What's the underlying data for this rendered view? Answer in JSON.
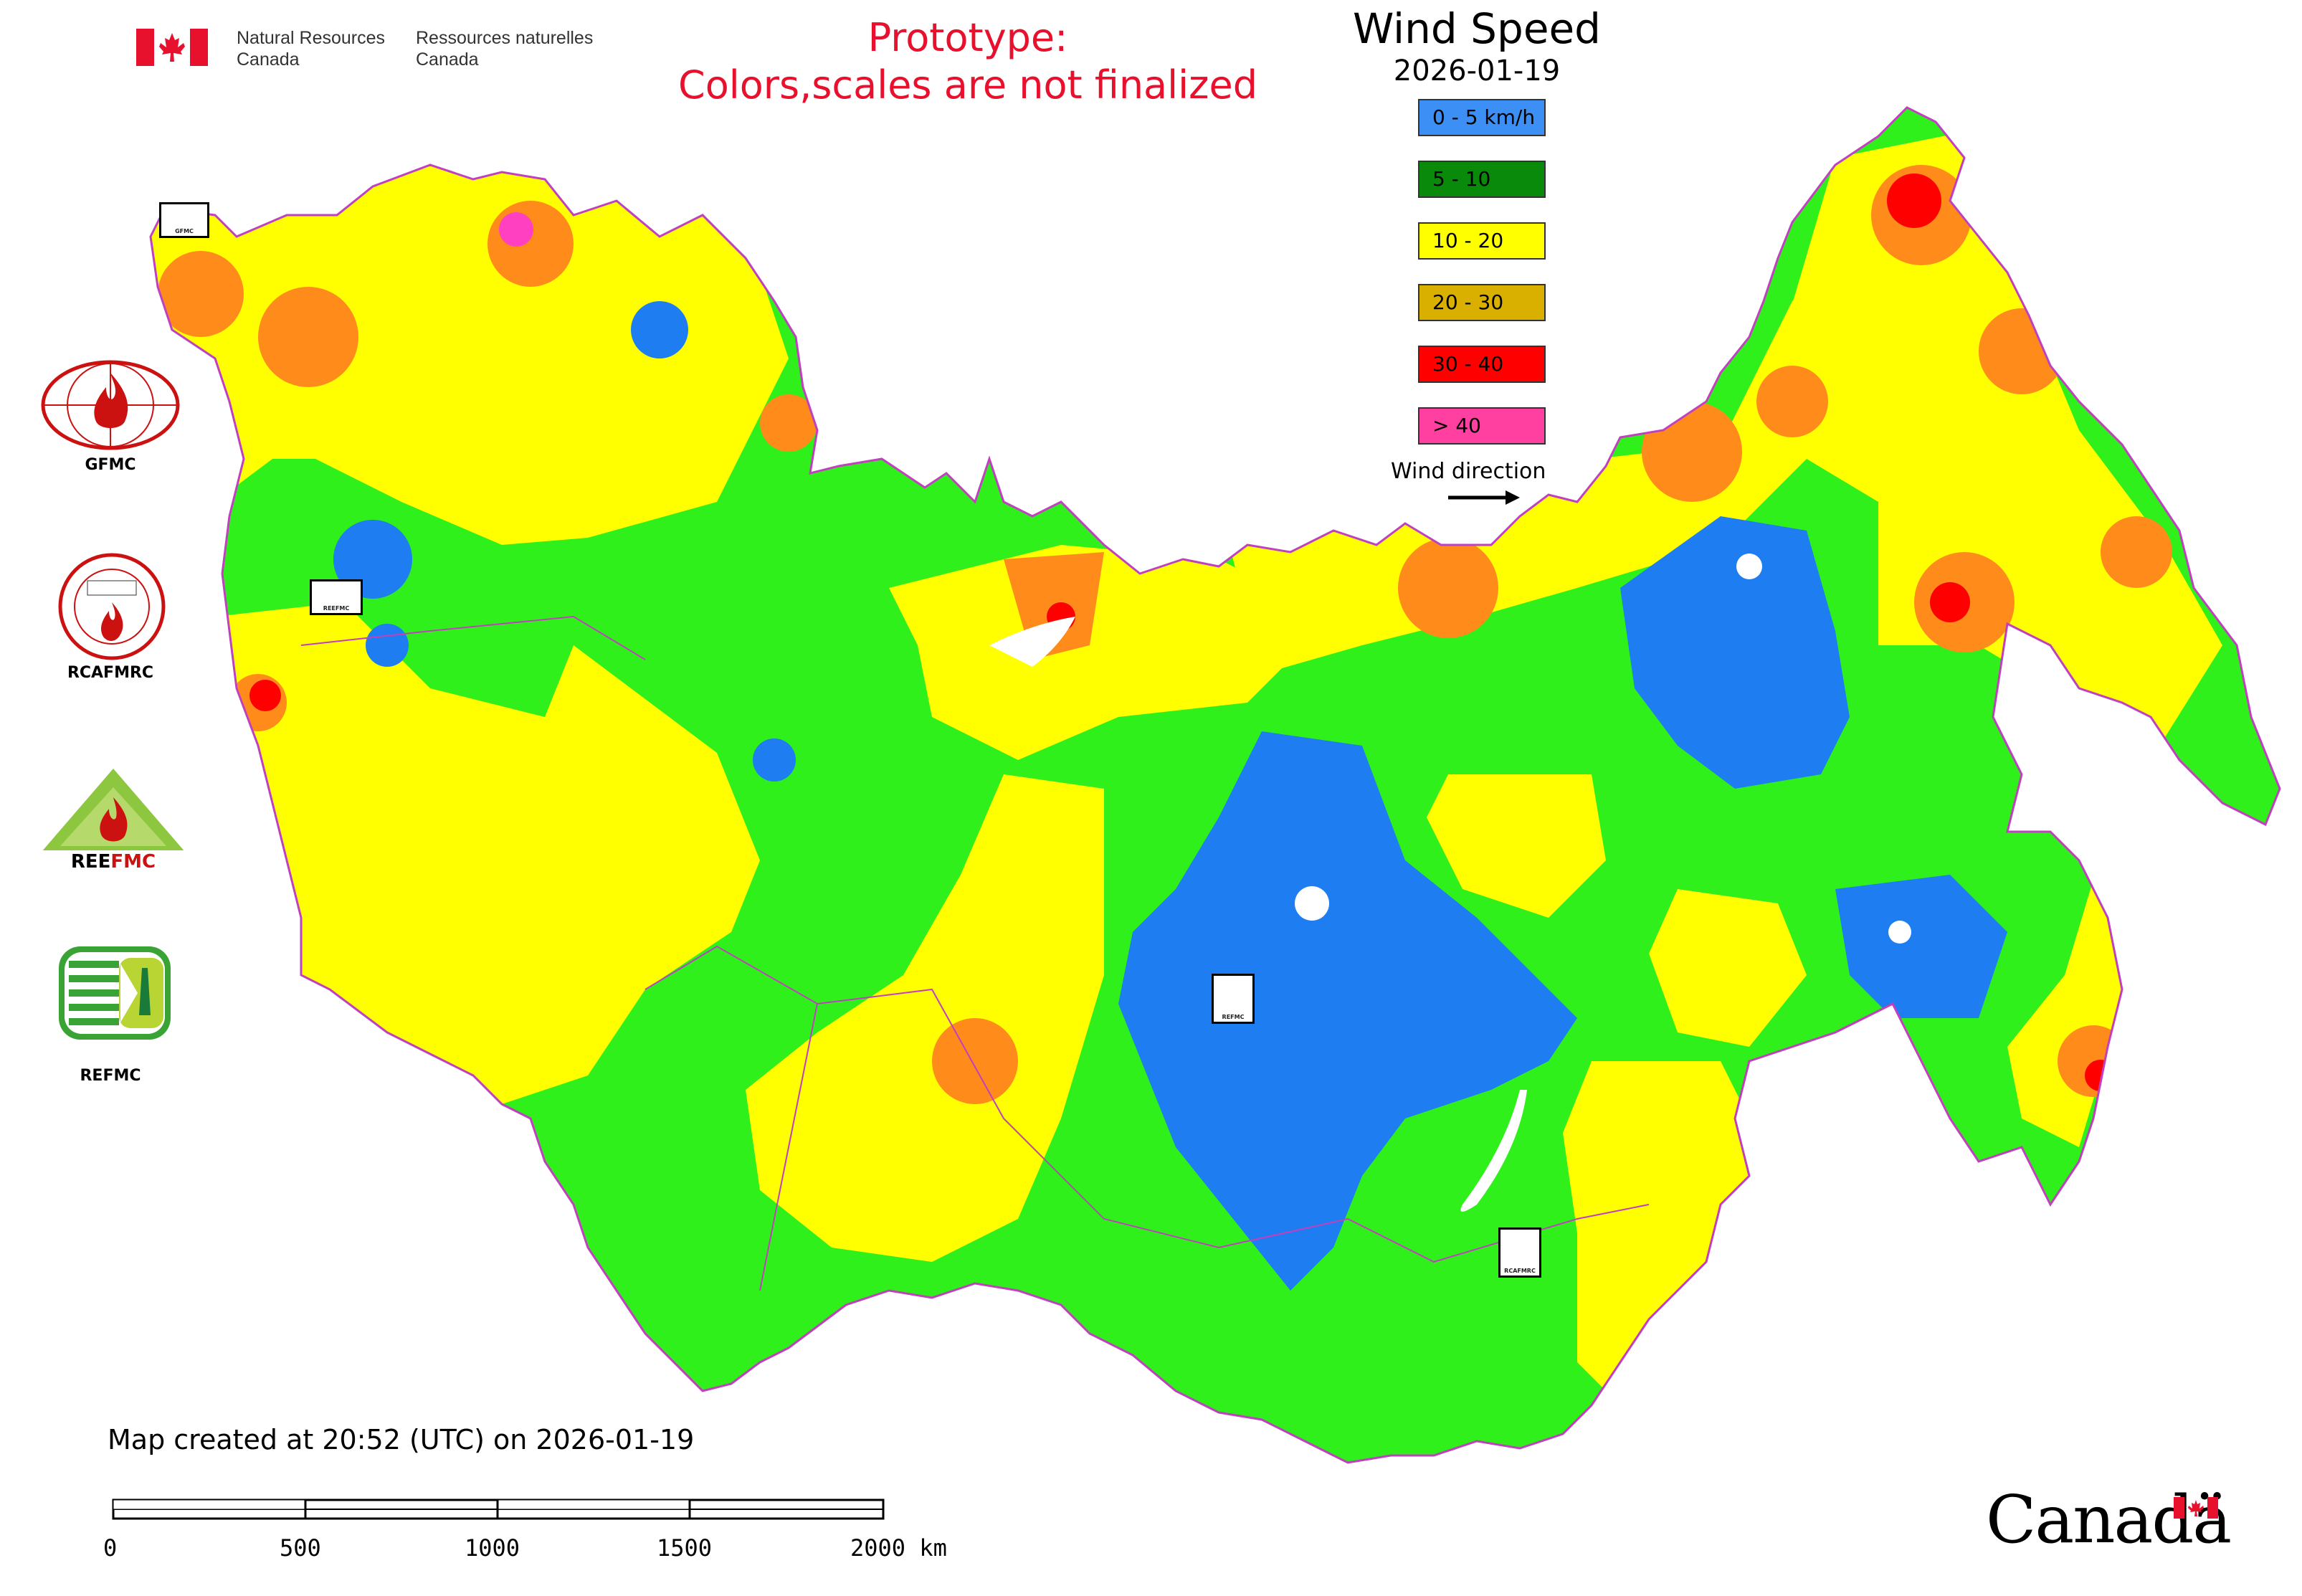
{
  "header": {
    "org_en_line1": "Natural Resources",
    "org_en_line2": "Canada",
    "org_fr_line1": "Ressources naturelles",
    "org_fr_line2": "Canada",
    "notice_line1": "Prototype:",
    "notice_line2": "Colors,scales are not finalized"
  },
  "legend": {
    "title": "Wind Speed",
    "date": "2026-01-19",
    "classes": [
      {
        "label": "0 - 5 km/h",
        "color": "#3b8ff5"
      },
      {
        "label": "5 - 10",
        "color": "#0a8a0a"
      },
      {
        "label": "10 - 20",
        "color": "#ffff00"
      },
      {
        "label": "20 - 30",
        "color": "#d9b000"
      },
      {
        "label": "30 - 40",
        "color": "#ff0000"
      },
      {
        "label": "> 40",
        "color": "#ff40a0"
      }
    ],
    "wind_direction_label": "Wind direction"
  },
  "map": {
    "colors": {
      "calm": "#1e7df0",
      "light": "#2ff01a",
      "moderate": "#ffff00",
      "fresh": "#ff8c1a",
      "strong": "#ff0000",
      "gale": "#ff40c0",
      "water": "#ffffff",
      "border": "#c040c0"
    },
    "station_labels": [
      "GFMC",
      "REEFMC",
      "REFMC",
      "RCAFMRC"
    ]
  },
  "logos": [
    {
      "name": "GFMC",
      "label": "GFMC",
      "color": "#cc1111"
    },
    {
      "name": "RCAFMRC",
      "label": "RCAFMRC",
      "color": "#cc1111"
    },
    {
      "name": "REEFMC",
      "label": "REEFMC",
      "color": "#8dc63f"
    },
    {
      "name": "REFMC",
      "label": "REFMC",
      "color": "#3aa335"
    }
  ],
  "footer": {
    "created_text": "Map created at 20:52 (UTC) on 2026-01-19",
    "scale_ticks": [
      "0",
      "500",
      "1000",
      "1500",
      "2000 km"
    ],
    "brand": "Canadä"
  }
}
